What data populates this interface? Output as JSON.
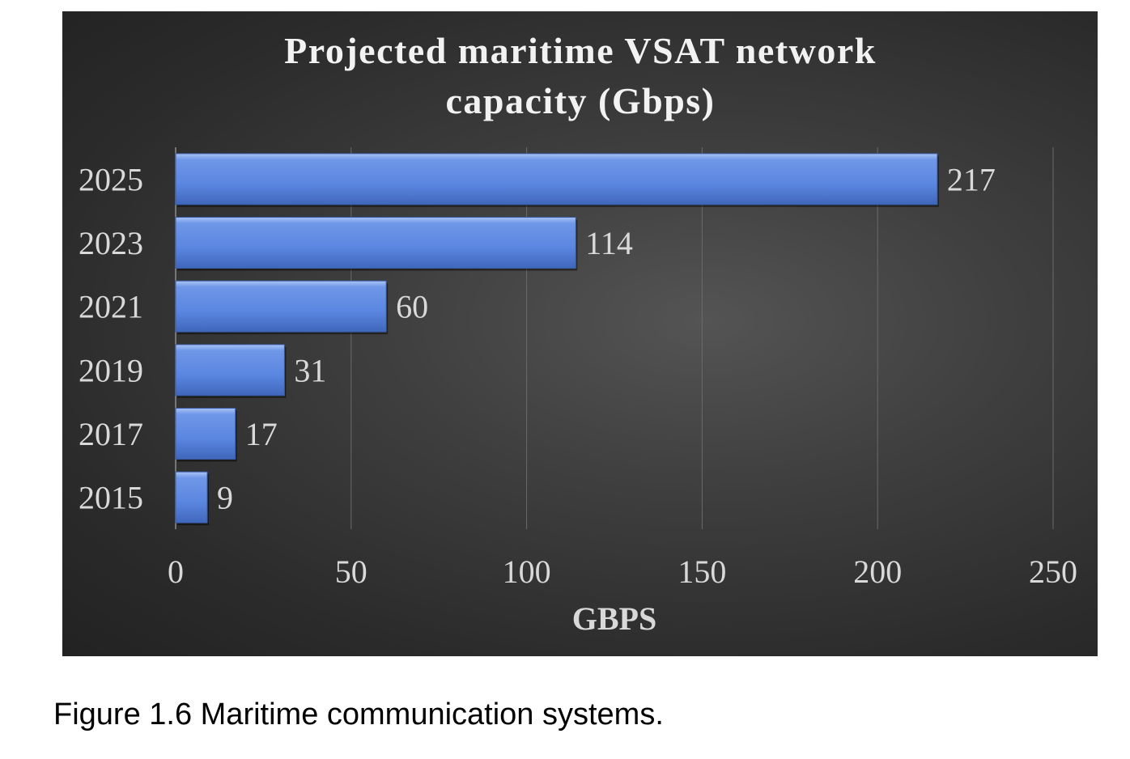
{
  "chart_data": {
    "type": "bar",
    "orientation": "horizontal",
    "title_lines": [
      "Projected maritime VSAT network",
      "capacity (Gbps)"
    ],
    "categories": [
      "2025",
      "2023",
      "2021",
      "2019",
      "2017",
      "2015"
    ],
    "values": [
      217,
      114,
      60,
      31,
      17,
      9
    ],
    "data_labels": [
      "217",
      "114",
      "60",
      "31",
      "17",
      "9"
    ],
    "xlabel": "GBPS",
    "ylabel": "",
    "xlim": [
      0,
      250
    ],
    "x_ticks": [
      0,
      50,
      100,
      150,
      200,
      250
    ],
    "x_tick_labels": [
      "0",
      "50",
      "100",
      "150",
      "200",
      "250"
    ],
    "grid": true,
    "legend": "none",
    "colors": {
      "bar_fill": "#5b86e0",
      "bar_highlight": "#8eb0f2",
      "bar_shadow": "#3e64b4",
      "background": "#3a3a3a",
      "text": "#d9d9d9",
      "title": "#f2f2f2"
    }
  },
  "caption": "Figure 1.6 Maritime communication systems."
}
